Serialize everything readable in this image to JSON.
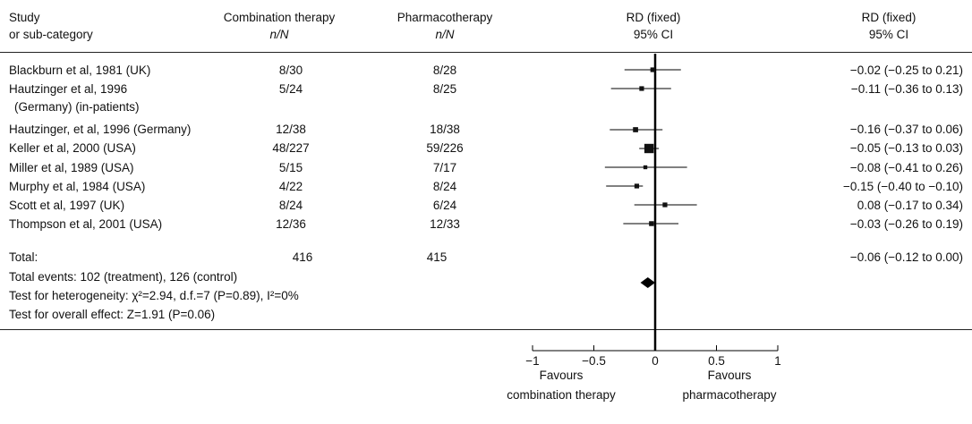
{
  "headers": {
    "col_study_1": "Study",
    "col_study_2": "or sub-category",
    "col_combo_1": "Combination therapy",
    "col_combo_2": "n/N",
    "col_pharma_1": "Pharmacotherapy",
    "col_pharma_2": "n/N",
    "col_plot_1": "RD (fixed)",
    "col_plot_2": "95% CI",
    "col_est_1": "RD (fixed)",
    "col_est_2": "95% CI"
  },
  "studies": [
    {
      "study": "Blackburn et al, 1981 (UK)",
      "combo": "8/30",
      "pharma": "8/28",
      "estimate_text": "−0.02 (−0.25 to 0.21)"
    },
    {
      "study": "Hautzinger et al, 1996",
      "study_line2": "(Germany) (in-patients)",
      "combo": "5/24",
      "pharma": "8/25",
      "estimate_text": "−0.11 (−0.36 to 0.13)"
    },
    {
      "study": "Hautzinger, et al, 1996 (Germany)",
      "combo": "12/38",
      "pharma": "18/38",
      "estimate_text": "−0.16 (−0.37 to 0.06)"
    },
    {
      "study": "Keller et al, 2000 (USA)",
      "combo": "48/227",
      "pharma": "59/226",
      "estimate_text": "−0.05 (−0.13 to 0.03)"
    },
    {
      "study": "Miller et al, 1989 (USA)",
      "combo": "5/15",
      "pharma": "7/17",
      "estimate_text": "−0.08 (−0.41 to 0.26)"
    },
    {
      "study": "Murphy et al, 1984 (USA)",
      "combo": "4/22",
      "pharma": "8/24",
      "estimate_text": "−0.15 (−0.40 to −0.10)"
    },
    {
      "study": "Scott et al, 1997 (UK)",
      "combo": "8/24",
      "pharma": "6/24",
      "estimate_text": "0.08 (−0.17 to 0.34)"
    },
    {
      "study": "Thompson et al, 2001 (USA)",
      "combo": "12/36",
      "pharma": "12/33",
      "estimate_text": "−0.03 (−0.26 to 0.19)"
    }
  ],
  "total": {
    "label": "Total:",
    "combo": "416",
    "pharma": "415",
    "estimate_text": "−0.06 (−0.12 to 0.00)"
  },
  "footnotes": {
    "events": "Total events: 102 (treatment), 126 (control)",
    "heterogeneity": "Test for heterogeneity: χ²=2.94, d.f.=7 (P=0.89), I²=0%",
    "overall": "Test for overall effect: Z=1.91 (P=0.06)"
  },
  "axis": {
    "ticks": [
      "−1",
      "−0.5",
      "0",
      "0.5",
      "1"
    ],
    "favours_left_1": "Favours",
    "favours_left_2": "combination therapy",
    "favours_right_1": "Favours",
    "favours_right_2": "pharmacotherapy"
  },
  "chart_data": {
    "type": "forest",
    "xlim": [
      -1,
      1
    ],
    "xticks": [
      -1,
      -0.5,
      0,
      0.5,
      1
    ],
    "reference_line": 0,
    "studies": [
      {
        "label": "Blackburn et al, 1981 (UK)",
        "estimate": -0.02,
        "lower": -0.25,
        "upper": 0.21,
        "weight": 1
      },
      {
        "label": "Hautzinger et al, 1996 (Germany) (in-patients)",
        "estimate": -0.11,
        "lower": -0.36,
        "upper": 0.13,
        "weight": 1
      },
      {
        "label": "Hautzinger, et al, 1996 (Germany)",
        "estimate": -0.16,
        "lower": -0.37,
        "upper": 0.06,
        "weight": 1.2
      },
      {
        "label": "Keller et al, 2000 (USA)",
        "estimate": -0.05,
        "lower": -0.13,
        "upper": 0.03,
        "weight": 4
      },
      {
        "label": "Miller et al, 1989 (USA)",
        "estimate": -0.08,
        "lower": -0.41,
        "upper": 0.26,
        "weight": 0.7
      },
      {
        "label": "Murphy et al, 1984 (USA)",
        "estimate": -0.15,
        "lower": -0.4,
        "upper": -0.1,
        "weight": 1
      },
      {
        "label": "Scott et al, 1997 (UK)",
        "estimate": 0.08,
        "lower": -0.17,
        "upper": 0.34,
        "weight": 1
      },
      {
        "label": "Thompson et al, 2001 (USA)",
        "estimate": -0.03,
        "lower": -0.26,
        "upper": 0.19,
        "weight": 1.1
      }
    ],
    "total": {
      "estimate": -0.06,
      "lower": -0.12,
      "upper": 0.0
    }
  }
}
